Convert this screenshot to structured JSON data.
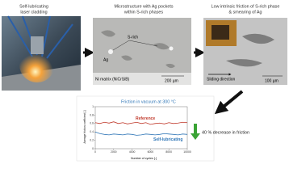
{
  "panels": [
    {
      "caption": [
        "Self-lubricating",
        "laser cladding"
      ]
    },
    {
      "caption": [
        "Microstructure with Ag pockets",
        "within S-rich phases"
      ],
      "labels": [
        "S-rich",
        "Ag",
        "Ni matrix (NiCrSiB)",
        "200 µm"
      ]
    },
    {
      "caption": [
        "Low intrinsic friction of S-rich phase",
        "& smearing of Ag"
      ],
      "labels": [
        "Sliding direction",
        "100 µm"
      ]
    }
  ],
  "annotation": "40 % decrease in friction",
  "chart_data": {
    "type": "line",
    "title": "Friction in vacuum at 300 °C",
    "x_label": "Number of cycles [-]",
    "y_label": "Average friction coefficient [-]",
    "x": [
      0,
      500,
      1000,
      1500,
      2000,
      2500,
      3000,
      3500,
      4000,
      4500,
      5000,
      5500,
      6000,
      6500,
      7000,
      7500,
      8000,
      8500,
      9000,
      9500,
      10000
    ],
    "xlim": [
      0,
      10000
    ],
    "xticks": [
      0,
      2000,
      4000,
      6000,
      8000,
      10000
    ],
    "ylim": [
      0,
      1
    ],
    "yticks": [
      0,
      0.2,
      0.4,
      0.6,
      0.8,
      1
    ],
    "series": [
      {
        "name": "Reference",
        "color": "#c0392b",
        "values": [
          0.62,
          0.6,
          0.63,
          0.61,
          0.64,
          0.6,
          0.62,
          0.59,
          0.61,
          0.63,
          0.6,
          0.62,
          0.58,
          0.6,
          0.61,
          0.59,
          0.62,
          0.6,
          0.61,
          0.63,
          0.62
        ]
      },
      {
        "name": "Self-lubricating",
        "color": "#2e75b6",
        "values": [
          0.4,
          0.36,
          0.34,
          0.33,
          0.35,
          0.34,
          0.33,
          0.35,
          0.34,
          0.32,
          0.33,
          0.35,
          0.34,
          0.33,
          0.34,
          0.36,
          0.35,
          0.34,
          0.33,
          0.35,
          0.34
        ]
      }
    ]
  }
}
